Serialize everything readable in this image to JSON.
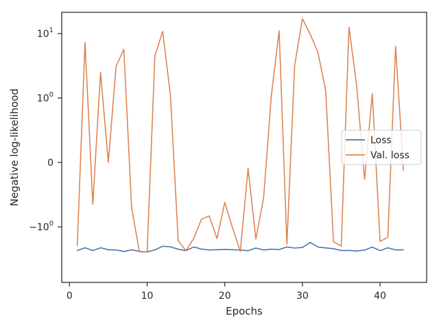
{
  "chart_data": {
    "type": "line",
    "title": "",
    "xlabel": "Epochs",
    "ylabel": "Negative log-likelihood",
    "yscale": "symlog",
    "xlim": [
      -1,
      46
    ],
    "x_ticks": [
      0,
      10,
      20,
      30,
      40
    ],
    "x_tick_labels": [
      "0",
      "10",
      "20",
      "30",
      "40"
    ],
    "y_ticks": [
      {
        "value": 10,
        "base": "10",
        "exp": "1"
      },
      {
        "value": 1,
        "base": "10",
        "exp": "0"
      },
      {
        "value": 0,
        "base": "0",
        "exp": ""
      },
      {
        "value": -1,
        "base": "−10",
        "exp": "0"
      }
    ],
    "grid": false,
    "legend_position": "right",
    "series": [
      {
        "name": "Loss",
        "color": "#4c72b0",
        "x": [
          1,
          2,
          3,
          4,
          5,
          6,
          7,
          8,
          9,
          10,
          11,
          12,
          13,
          14,
          15,
          16,
          17,
          18,
          19,
          20,
          21,
          22,
          23,
          24,
          25,
          26,
          27,
          28,
          29,
          30,
          31,
          32,
          33,
          34,
          35,
          36,
          37,
          38,
          39,
          40,
          41,
          42,
          43
        ],
        "y": [
          -2.33,
          -2.11,
          -2.33,
          -2.11,
          -2.26,
          -2.28,
          -2.41,
          -2.27,
          -2.4,
          -2.45,
          -2.28,
          -2.0,
          -2.04,
          -2.22,
          -2.34,
          -2.05,
          -2.21,
          -2.28,
          -2.26,
          -2.24,
          -2.26,
          -2.29,
          -2.34,
          -2.13,
          -2.29,
          -2.22,
          -2.25,
          -2.05,
          -2.13,
          -2.09,
          -1.74,
          -2.06,
          -2.12,
          -2.18,
          -2.33,
          -2.32,
          -2.37,
          -2.29,
          -2.06,
          -2.34,
          -2.11,
          -2.28,
          -2.27
        ]
      },
      {
        "name": "Val. loss",
        "color": "#dd8452",
        "x": [
          1,
          2,
          3,
          4,
          5,
          6,
          7,
          8,
          9,
          10,
          11,
          12,
          13,
          14,
          15,
          16,
          17,
          18,
          19,
          20,
          21,
          22,
          23,
          24,
          25,
          26,
          27,
          28,
          29,
          30,
          31,
          32,
          33,
          34,
          35,
          36,
          37,
          38,
          39,
          40,
          41,
          42,
          43
        ],
        "y": [
          -1.95,
          7.3,
          -0.65,
          2.5,
          0.0,
          3.1,
          5.7,
          -0.7,
          -2.44,
          -2.46,
          4.5,
          10.8,
          1.1,
          -1.64,
          -2.34,
          -1.51,
          -0.88,
          -0.83,
          -1.52,
          -0.62,
          -1.04,
          -2.4,
          -0.09,
          -1.55,
          -0.55,
          1.1,
          11.0,
          -1.86,
          3.2,
          17.0,
          9.8,
          5.1,
          1.3,
          -1.7,
          -1.98,
          12.5,
          1.5,
          -0.26,
          1.17,
          -1.68,
          -1.45,
          6.4,
          -0.12
        ]
      }
    ]
  }
}
